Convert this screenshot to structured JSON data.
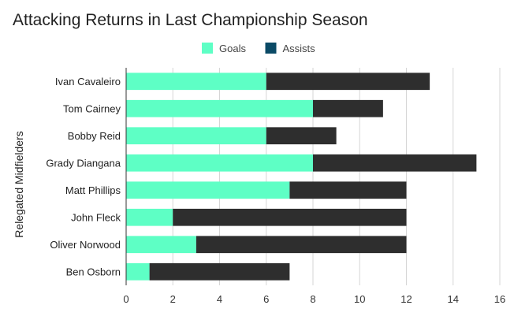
{
  "chart_data": {
    "type": "bar",
    "orientation": "horizontal",
    "stacked": true,
    "title": "Attacking Returns in Last Championship Season",
    "xlabel": "",
    "ylabel": "Relegated Midfielders",
    "categories": [
      "Ivan Cavaleiro",
      "Tom Cairney",
      "Bobby Reid",
      "Grady Diangana",
      "Matt Phillips",
      "John Fleck",
      "Oliver Norwood",
      "Ben Osborn"
    ],
    "series": [
      {
        "name": "Goals",
        "color": "#5effc5",
        "values": [
          6,
          8,
          6,
          8,
          7,
          2,
          3,
          1
        ]
      },
      {
        "name": "Assists",
        "color": "#2e2e2e",
        "legend_color": "#0b4a66",
        "values": [
          7,
          3,
          3,
          7,
          5,
          10,
          9,
          6
        ]
      }
    ],
    "xlim": [
      0,
      16
    ],
    "xticks": [
      0,
      2,
      4,
      6,
      8,
      10,
      12,
      14,
      16
    ],
    "grid": true,
    "legend_position": "top"
  }
}
